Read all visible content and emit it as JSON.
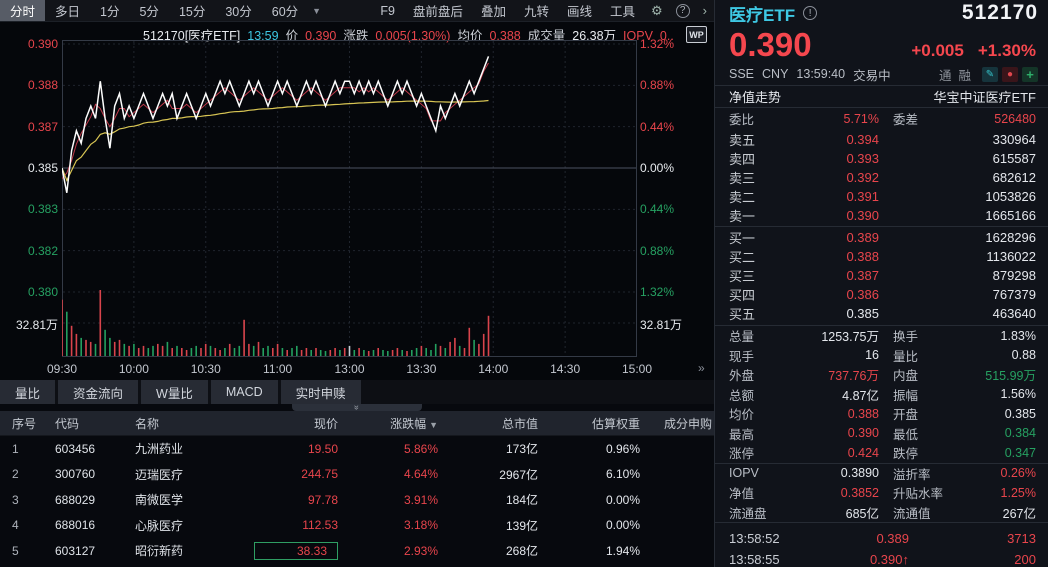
{
  "toolbar": {
    "tabs": [
      {
        "label": "分时",
        "active": true
      },
      {
        "label": "多日",
        "active": false
      },
      {
        "label": "1分",
        "active": false
      },
      {
        "label": "5分",
        "active": false
      },
      {
        "label": "15分",
        "active": false
      },
      {
        "label": "30分",
        "active": false
      },
      {
        "label": "60分",
        "active": false
      }
    ],
    "dropdown_caret": "▼",
    "actions": [
      "F9",
      "盘前盘后",
      "叠加",
      "九转",
      "画线",
      "工具"
    ],
    "gear_icon": "⚙",
    "help_icon": "?",
    "expand_icon": "›"
  },
  "chart_header": {
    "segments": [
      {
        "t": "512170[医疗ETF]",
        "c": "w"
      },
      {
        "t": "13:59",
        "c": "cy"
      },
      {
        "t": "价",
        "c": "lb"
      },
      {
        "t": "0.390",
        "c": "r"
      },
      {
        "t": "涨跌",
        "c": "lb"
      },
      {
        "t": "0.005(1.30%)",
        "c": "r"
      },
      {
        "t": "均价",
        "c": "lb"
      },
      {
        "t": "0.388",
        "c": "r"
      },
      {
        "t": "成交量",
        "c": "lb"
      },
      {
        "t": "26.38万",
        "c": "w"
      },
      {
        "t": "IOPV",
        "c": "r"
      },
      {
        "t": "0..",
        "c": "r"
      }
    ],
    "wp_badge": "WP",
    "axis_expand_icon": "»"
  },
  "chart_data": {
    "type": "line",
    "title": "512170 医疗ETF 分时(minute) chart, 09:30–13:59",
    "x_ticks": [
      "09:30",
      "10:00",
      "10:30",
      "11:00",
      "13:00",
      "13:30",
      "14:00",
      "14:30",
      "15:00"
    ],
    "x_total_minutes": 240,
    "minutes_per_point": 2,
    "y_left_ticks": [
      {
        "t": "0.390",
        "c": "r"
      },
      {
        "t": "0.388",
        "c": "r"
      },
      {
        "t": "0.387",
        "c": "r"
      },
      {
        "t": "0.385",
        "c": "w"
      },
      {
        "t": "0.383",
        "c": "g"
      },
      {
        "t": "0.382",
        "c": "g"
      },
      {
        "t": "0.380",
        "c": "g"
      }
    ],
    "y_right_ticks": [
      {
        "t": "1.32%",
        "c": "r"
      },
      {
        "t": "0.88%",
        "c": "r"
      },
      {
        "t": "0.44%",
        "c": "r"
      },
      {
        "t": "0.00%",
        "c": "w"
      },
      {
        "t": "0.44%",
        "c": "g"
      },
      {
        "t": "0.88%",
        "c": "g"
      },
      {
        "t": "1.32%",
        "c": "g"
      }
    ],
    "ylim": [
      0.38,
      0.39
    ],
    "baseline": 0.385,
    "volume_max": 32.81,
    "volume_label_left": "32.81万",
    "volume_label_right": "32.81万",
    "legend": [
      "price(white)",
      "avg(yellow)",
      "iopv(red)"
    ],
    "series": [
      {
        "name": "price",
        "values": [
          0.385,
          0.384,
          0.3857,
          0.3865,
          0.386,
          0.387,
          0.3875,
          0.387,
          0.3885,
          0.387,
          0.3858,
          0.3875,
          0.388,
          0.387,
          0.3875,
          0.387,
          0.3875,
          0.388,
          0.3875,
          0.387,
          0.3875,
          0.388,
          0.3875,
          0.388,
          0.387,
          0.3875,
          0.388,
          0.3875,
          0.387,
          0.3875,
          0.388,
          0.3875,
          0.388,
          0.3885,
          0.388,
          0.3885,
          0.388,
          0.3875,
          0.388,
          0.3885,
          0.388,
          0.3885,
          0.388,
          0.3875,
          0.388,
          0.3885,
          0.388,
          0.3885,
          0.388,
          0.3875,
          0.388,
          0.3885,
          0.388,
          0.3885,
          0.388,
          0.3875,
          0.388,
          0.3885,
          0.388,
          0.3885,
          0.3885,
          0.388,
          0.3885,
          0.388,
          0.3885,
          0.388,
          0.3885,
          0.388,
          0.3875,
          0.388,
          0.3885,
          0.388,
          0.3885,
          0.388,
          0.3875,
          0.388,
          0.3875,
          0.387,
          0.3865,
          0.3875,
          0.387,
          0.3875,
          0.388,
          0.3875,
          0.388,
          0.3885,
          0.388,
          0.3885,
          0.389,
          0.3895
        ]
      },
      {
        "name": "volume_wan",
        "values": [
          28,
          22,
          15,
          11,
          9,
          8,
          7,
          6,
          32.8,
          13,
          9,
          7,
          8,
          6,
          5,
          6,
          4,
          5,
          4,
          5,
          6,
          5,
          7,
          4,
          5,
          4,
          3,
          4,
          5,
          4,
          6,
          5,
          4,
          3,
          4,
          6,
          4,
          5,
          18,
          6,
          5,
          7,
          4,
          5,
          4,
          6,
          4,
          3,
          4,
          5,
          3,
          4,
          3,
          4,
          3,
          2.5,
          3,
          4,
          3,
          4,
          5,
          3,
          4,
          3,
          2.5,
          3,
          4,
          3,
          2.5,
          3,
          4,
          3,
          2.5,
          3,
          4,
          5,
          4,
          3,
          6,
          5,
          4,
          7,
          9,
          5,
          4,
          14,
          8,
          6,
          11,
          20
        ]
      }
    ]
  },
  "bottom": {
    "tabs": [
      "量比",
      "资金流向",
      "W量比",
      "MACD",
      "实时申赎"
    ],
    "handle_icon": "»"
  },
  "table": {
    "headers": [
      "序号",
      "代码",
      "名称",
      "现价",
      "涨跌幅",
      "总市值",
      "估算权重",
      "成分申购"
    ],
    "sort_column": "涨跌幅",
    "sort_caret": "▼",
    "rows": [
      {
        "seq": "1",
        "code": "603456",
        "name": "九洲药业",
        "price": "19.50",
        "pct": "5.86%",
        "mcap": "173亿",
        "weight": "0.96%",
        "selected": false
      },
      {
        "seq": "2",
        "code": "300760",
        "name": "迈瑞医疗",
        "price": "244.75",
        "pct": "4.64%",
        "mcap": "2967亿",
        "weight": "6.10%",
        "selected": false
      },
      {
        "seq": "3",
        "code": "688029",
        "name": "南微医学",
        "price": "97.78",
        "pct": "3.91%",
        "mcap": "184亿",
        "weight": "0.00%",
        "selected": false
      },
      {
        "seq": "4",
        "code": "688016",
        "name": "心脉医疗",
        "price": "112.53",
        "pct": "3.18%",
        "mcap": "139亿",
        "weight": "0.00%",
        "selected": false
      },
      {
        "seq": "5",
        "code": "603127",
        "name": "昭衍新药",
        "price": "38.33",
        "pct": "2.93%",
        "mcap": "268亿",
        "weight": "1.94%",
        "selected": true
      }
    ]
  },
  "right_panel": {
    "name": "医疗ETF",
    "info_icon": "!",
    "code": "512170",
    "price": "0.390",
    "change": "+0.005",
    "change_pct": "+1.30%",
    "exchange": "SSE",
    "currency": "CNY",
    "time": "13:59:40",
    "status": "交易中",
    "margin_badges": [
      "通",
      "融"
    ],
    "tool_icons": {
      "edit": "✎",
      "alert": "●",
      "add": "+"
    },
    "nav": {
      "title": "净值走势",
      "fund": "华宝中证医疗ETF"
    },
    "committee": {
      "wb_label": "委比",
      "wb": "5.71%",
      "wc_label": "委差",
      "wc": "526480"
    },
    "asks": [
      {
        "label": "卖五",
        "price": "0.394",
        "pc": "r",
        "vol": "330964"
      },
      {
        "label": "卖四",
        "price": "0.393",
        "pc": "r",
        "vol": "615587"
      },
      {
        "label": "卖三",
        "price": "0.392",
        "pc": "r",
        "vol": "682612"
      },
      {
        "label": "卖二",
        "price": "0.391",
        "pc": "r",
        "vol": "1053826"
      },
      {
        "label": "卖一",
        "price": "0.390",
        "pc": "r",
        "vol": "1665166"
      }
    ],
    "bids": [
      {
        "label": "买一",
        "price": "0.389",
        "pc": "r",
        "vol": "1628296"
      },
      {
        "label": "买二",
        "price": "0.388",
        "pc": "r",
        "vol": "1136022"
      },
      {
        "label": "买三",
        "price": "0.387",
        "pc": "r",
        "vol": "879298"
      },
      {
        "label": "买四",
        "price": "0.386",
        "pc": "r",
        "vol": "767379"
      },
      {
        "label": "买五",
        "price": "0.385",
        "pc": "w",
        "vol": "463640"
      }
    ],
    "stats_main": [
      {
        "l1": "总量",
        "v1": "1253.75万",
        "c1": "w",
        "l2": "换手",
        "v2": "1.83%",
        "c2": "w"
      },
      {
        "l1": "现手",
        "v1": "16",
        "c1": "w",
        "l2": "量比",
        "v2": "0.88",
        "c2": "w"
      },
      {
        "l1": "外盘",
        "v1": "737.76万",
        "c1": "r",
        "l2": "内盘",
        "v2": "515.99万",
        "c2": "g"
      },
      {
        "l1": "总额",
        "v1": "4.87亿",
        "c1": "w",
        "l2": "振幅",
        "v2": "1.56%",
        "c2": "w"
      },
      {
        "l1": "均价",
        "v1": "0.388",
        "c1": "r",
        "l2": "开盘",
        "v2": "0.385",
        "c2": "w"
      },
      {
        "l1": "最高",
        "v1": "0.390",
        "c1": "r",
        "l2": "最低",
        "v2": "0.384",
        "c2": "g"
      },
      {
        "l1": "涨停",
        "v1": "0.424",
        "c1": "r",
        "l2": "跌停",
        "v2": "0.347",
        "c2": "g"
      }
    ],
    "stats_iopv": [
      {
        "l1": "IOPV",
        "v1": "0.3890",
        "c1": "w",
        "l2": "溢折率",
        "v2": "0.26%",
        "c2": "r"
      },
      {
        "l1": "净值",
        "v1": "0.3852",
        "c1": "r",
        "l2": "升贴水率",
        "v2": "1.25%",
        "c2": "r"
      },
      {
        "l1": "流通盘",
        "v1": "685亿",
        "c1": "w",
        "l2": "流通值",
        "v2": "267亿",
        "c2": "w"
      }
    ],
    "ticks": [
      {
        "time": "13:58:52",
        "price": "0.389",
        "arrow": "",
        "vol": "3713"
      },
      {
        "time": "13:58:55",
        "price": "0.390",
        "arrow": "↑",
        "vol": "200"
      }
    ]
  },
  "colors": {
    "up": "#e8454c",
    "down": "#26a162",
    "neutral": "#e4e7ec",
    "price_line": "#fdfdfd",
    "avg_line": "#d8c554",
    "iopv_line": "#c0394a",
    "accent_cyan": "#3ec8e4",
    "big_price": "#f5474e"
  }
}
